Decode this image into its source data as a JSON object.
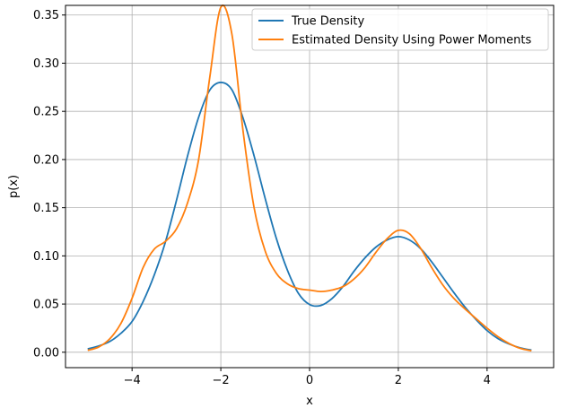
{
  "chart_data": {
    "type": "line",
    "xlabel": "x",
    "ylabel": "p(x)",
    "xlim": [
      -5.5,
      5.5
    ],
    "ylim": [
      -0.016,
      0.36
    ],
    "xticks": [
      -4,
      -2,
      0,
      2,
      4
    ],
    "xtick_labels": [
      "−4",
      "−2",
      "0",
      "2",
      "4"
    ],
    "yticks": [
      0.0,
      0.05,
      0.1,
      0.15,
      0.2,
      0.25,
      0.3,
      0.35
    ],
    "ytick_labels": [
      "0.00",
      "0.05",
      "0.10",
      "0.15",
      "0.20",
      "0.25",
      "0.30",
      "0.35"
    ],
    "grid": true,
    "legend_position": "top-right",
    "series": [
      {
        "name": "True Density",
        "color": "#1f77b4",
        "x": [
          -5.0,
          -4.75,
          -4.5,
          -4.25,
          -4.0,
          -3.75,
          -3.5,
          -3.25,
          -3.0,
          -2.75,
          -2.5,
          -2.25,
          -2.0,
          -1.75,
          -1.5,
          -1.25,
          -1.0,
          -0.75,
          -0.5,
          -0.25,
          0.0,
          0.25,
          0.5,
          0.75,
          1.0,
          1.25,
          1.5,
          1.75,
          2.0,
          2.25,
          2.5,
          2.75,
          3.0,
          3.25,
          3.5,
          3.75,
          4.0,
          4.25,
          4.5,
          4.75,
          5.0
        ],
        "y": [
          0.0035,
          0.0065,
          0.0112,
          0.0197,
          0.0319,
          0.0528,
          0.0802,
          0.1142,
          0.1575,
          0.2036,
          0.2439,
          0.272,
          0.28,
          0.2724,
          0.2432,
          0.2037,
          0.1595,
          0.1183,
          0.0853,
          0.061,
          0.0495,
          0.0485,
          0.0555,
          0.068,
          0.084,
          0.098,
          0.1093,
          0.1166,
          0.12,
          0.1165,
          0.1076,
          0.0939,
          0.078,
          0.062,
          0.047,
          0.034,
          0.0225,
          0.014,
          0.0085,
          0.0045,
          0.0022
        ]
      },
      {
        "name": "Estimated Density Using Power Moments",
        "color": "#ff7f0e",
        "x": [
          -5.0,
          -4.75,
          -4.5,
          -4.25,
          -4.0,
          -3.75,
          -3.5,
          -3.25,
          -3.0,
          -2.75,
          -2.5,
          -2.25,
          -2.0,
          -1.75,
          -1.5,
          -1.25,
          -1.0,
          -0.75,
          -0.5,
          -0.25,
          0.0,
          0.25,
          0.5,
          0.75,
          1.0,
          1.25,
          1.5,
          1.75,
          2.0,
          2.25,
          2.5,
          2.75,
          3.0,
          3.25,
          3.5,
          3.75,
          4.0,
          4.25,
          4.5,
          4.75,
          5.0
        ],
        "y": [
          0.002,
          0.0055,
          0.014,
          0.03,
          0.056,
          0.088,
          0.107,
          0.115,
          0.128,
          0.155,
          0.2,
          0.285,
          0.358,
          0.33,
          0.23,
          0.15,
          0.105,
          0.082,
          0.071,
          0.066,
          0.0645,
          0.063,
          0.0645,
          0.068,
          0.076,
          0.088,
          0.104,
          0.118,
          0.1265,
          0.123,
          0.108,
          0.088,
          0.07,
          0.056,
          0.045,
          0.035,
          0.025,
          0.016,
          0.009,
          0.004,
          0.0015
        ]
      }
    ]
  }
}
